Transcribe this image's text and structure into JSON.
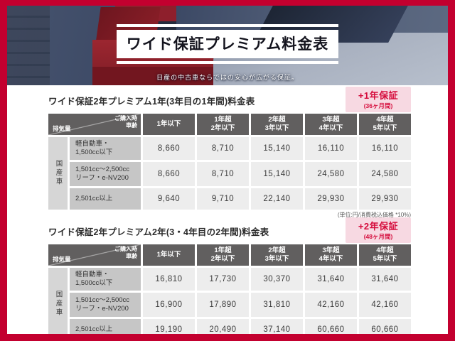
{
  "banner": {
    "title": "ワイド保証プレミアム料金表",
    "subtitle": "日産の中古車ならではの安心が広がる保証。"
  },
  "note": "(単位:円/消費税込価格 *10%)",
  "table_common": {
    "corner_top_right": "ご購入時\n車齢",
    "corner_bottom_left": "排気量",
    "row_group_label": "国産車",
    "columns": [
      "1年以下",
      "1年超\n2年以下",
      "2年超\n3年以下",
      "3年超\n4年以下",
      "4年超\n5年以下"
    ],
    "row_labels": [
      "軽自動車・\n1,500cc以下",
      "1,501cc〜2,500cc\nリーフ・e-NV200",
      "2,501cc以上"
    ]
  },
  "tables": [
    {
      "title": "ワイド保証2年プレミアム1年(3年目の1年間)料金表",
      "badge_title": "+1年保証",
      "badge_subtitle": "(36ヶ月間)",
      "rows": [
        [
          "8,660",
          "8,710",
          "15,140",
          "16,110",
          "16,110"
        ],
        [
          "8,660",
          "8,710",
          "15,140",
          "24,580",
          "24,580"
        ],
        [
          "9,640",
          "9,710",
          "22,140",
          "29,930",
          "29,930"
        ]
      ]
    },
    {
      "title": "ワイド保証2年プレミアム2年(3・4年目の2年間)料金表",
      "badge_title": "+2年保証",
      "badge_subtitle": "(48ヶ月間)",
      "rows": [
        [
          "16,810",
          "17,730",
          "30,370",
          "31,640",
          "31,640"
        ],
        [
          "16,900",
          "17,890",
          "31,810",
          "42,160",
          "42,160"
        ],
        [
          "19,190",
          "20,490",
          "37,140",
          "60,660",
          "60,660"
        ]
      ]
    }
  ],
  "colors": {
    "frame_red": "#c3002f",
    "badge_bg": "#f7d9e2",
    "badge_text": "#d50c3c",
    "table_header_bg": "#615f5f"
  }
}
